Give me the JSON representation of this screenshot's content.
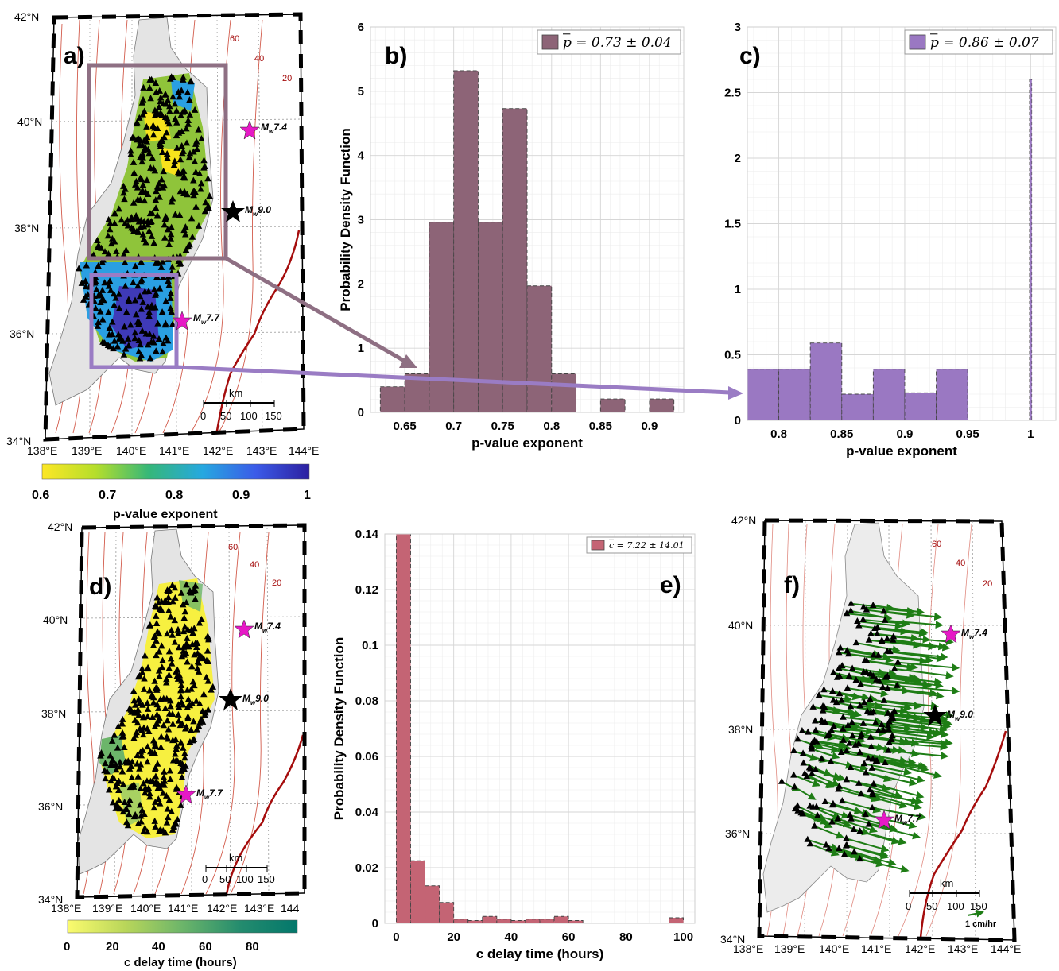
{
  "panels": {
    "a": {
      "label": "a)",
      "lat_labels": [
        "42°N",
        "40°N",
        "38°N",
        "36°N",
        "34°N"
      ],
      "lon_labels": [
        "138°E",
        "139°E",
        "140°E",
        "141°E",
        "142°E",
        "143°E",
        "144°E"
      ],
      "contour_labels": [
        "60",
        "40",
        "20"
      ],
      "quakes": [
        {
          "label": "M",
          "sub": "w",
          "mag": "7.4",
          "color": "#e619c6"
        },
        {
          "label": "M",
          "sub": "w",
          "mag": "9.0",
          "color": "#000000"
        },
        {
          "label": "M",
          "sub": "w",
          "mag": "7.7",
          "color": "#e619c6"
        }
      ],
      "scale": {
        "title": "km",
        "ticks": [
          "0",
          "50",
          "100",
          "150"
        ]
      },
      "colorbar": {
        "label": "p-value exponent",
        "tick_labels": [
          "0.6",
          "0.7",
          "0.8",
          "0.9",
          "1"
        ],
        "colors": [
          "#fde725",
          "#b5de2b",
          "#35b779",
          "#26a8e0",
          "#3b5be8",
          "#2c1fa0"
        ]
      },
      "box_colors": {
        "north": "#8e6f83",
        "south": "#9a7cc4"
      }
    },
    "d": {
      "label": "d)",
      "lat_labels": [
        "42°N",
        "40°N",
        "38°N",
        "36°N",
        "34°N"
      ],
      "lon_labels": [
        "138°E",
        "139°E",
        "140°E",
        "141°E",
        "142°E",
        "143°E",
        "144"
      ],
      "contour_labels": [
        "60",
        "40",
        "20"
      ],
      "quakes": [
        {
          "label": "M",
          "sub": "w",
          "mag": "7.4",
          "color": "#e619c6"
        },
        {
          "label": "M",
          "sub": "w",
          "mag": "9.0",
          "color": "#000000"
        },
        {
          "label": "M",
          "sub": "w",
          "mag": "7.7",
          "color": "#e619c6"
        }
      ],
      "scale": {
        "title": "km",
        "ticks": [
          "0",
          "50",
          "100",
          "150"
        ]
      },
      "colorbar": {
        "label": "c delay time (hours)",
        "tick_labels": [
          "0",
          "20",
          "40",
          "60",
          "80"
        ],
        "colors": [
          "#fbfb6e",
          "#b9d65a",
          "#6cb56a",
          "#248c6e",
          "#03776b"
        ]
      }
    },
    "f": {
      "label": "f)",
      "lat_labels": [
        "42°N",
        "40°N",
        "38°N",
        "36°N",
        "34°N"
      ],
      "lon_labels": [
        "138°E",
        "139°E",
        "140°E",
        "141°E",
        "142°E",
        "143°E",
        "144°E"
      ],
      "contour_labels": [
        "60",
        "40",
        "20"
      ],
      "quakes": [
        {
          "label": "M",
          "sub": "w",
          "mag": "7.4",
          "color": "#e619c6"
        },
        {
          "label": "M",
          "sub": "w",
          "mag": "9.0",
          "color": "#000000"
        },
        {
          "label": "M",
          "sub": "w",
          "mag": "7.7",
          "color": "#e619c6"
        }
      ],
      "scale": {
        "title": "km",
        "ticks": [
          "0",
          "50",
          "100",
          "150"
        ]
      },
      "vector_legend": "1 cm/hr",
      "arrow_color": "#1e7d15"
    }
  },
  "chart_data": [
    {
      "panel": "b)",
      "type": "bar",
      "bin_edges": [
        0.625,
        0.65,
        0.675,
        0.7,
        0.725,
        0.75,
        0.775,
        0.8,
        0.825,
        0.85,
        0.875,
        0.9,
        0.925
      ],
      "values": [
        0.4,
        0.6,
        2.96,
        5.32,
        2.96,
        4.73,
        1.97,
        0.6,
        0,
        0.21,
        0,
        0.21
      ],
      "xlim": [
        0.615,
        0.935
      ],
      "ylim": [
        0,
        6
      ],
      "xticks": [
        0.65,
        0.7,
        0.75,
        0.8,
        0.85,
        0.9
      ],
      "xtick_labels": [
        "0.65",
        "0.7",
        "0.75",
        "0.8",
        "0.85",
        "0.9"
      ],
      "yticks": [
        0,
        1,
        2,
        3,
        4,
        5,
        6
      ],
      "ytick_labels": [
        "0",
        "1",
        "2",
        "3",
        "4",
        "5",
        "6"
      ],
      "xlabel": "p-value exponent",
      "ylabel": "Probability Density Function",
      "legend": "p = 0.73 ± 0.04",
      "legend_position": "top-right",
      "color": "#8d6477",
      "grid": true
    },
    {
      "panel": "c)",
      "type": "bar",
      "bin_edges": [
        0.775,
        0.8,
        0.825,
        0.85,
        0.875,
        0.9,
        0.925,
        0.95
      ],
      "values": [
        0.39,
        0.39,
        0.59,
        0.2,
        0.39,
        0.21,
        0.39
      ],
      "spike": {
        "x": 1.0,
        "value": 2.6
      },
      "xlim": [
        0.775,
        1.02
      ],
      "ylim": [
        0,
        3
      ],
      "xticks": [
        0.8,
        0.85,
        0.9,
        0.95,
        1
      ],
      "xtick_labels": [
        "0.8",
        "0.85",
        "0.9",
        "0.95",
        "1"
      ],
      "yticks": [
        0,
        0.5,
        1,
        1.5,
        2,
        2.5,
        3
      ],
      "ytick_labels": [
        "0",
        "0.5",
        "1",
        "1.5",
        "2",
        "2.5",
        "3"
      ],
      "xlabel": "p-value exponent",
      "ylabel": "",
      "legend": "p = 0.86 ± 0.07",
      "legend_position": "top-right",
      "color": "#9a78c2",
      "grid": true
    },
    {
      "panel": "e)",
      "type": "bar",
      "bin_edges": [
        0,
        5,
        10,
        15,
        20,
        25,
        30,
        35,
        40,
        45,
        50,
        55,
        60,
        65,
        70,
        75,
        80,
        85,
        90,
        95,
        100
      ],
      "values": [
        0.14,
        0.0225,
        0.0135,
        0.0075,
        0.0015,
        0.001,
        0.0025,
        0.0015,
        0.001,
        0.0015,
        0.0015,
        0.0025,
        0.001,
        0,
        0,
        0,
        0,
        0,
        0,
        0.002
      ],
      "xlim": [
        -4,
        104
      ],
      "ylim": [
        0,
        0.14
      ],
      "xticks": [
        0,
        20,
        40,
        60,
        80,
        100
      ],
      "xtick_labels": [
        "0",
        "20",
        "40",
        "60",
        "80",
        "100"
      ],
      "yticks": [
        0,
        0.02,
        0.04,
        0.06,
        0.08,
        0.1,
        0.12,
        0.14
      ],
      "ytick_labels": [
        "0",
        "0.02",
        "0.04",
        "0.06",
        "0.08",
        "0.1",
        "0.12",
        "0.14"
      ],
      "xlabel": "c delay time (hours)",
      "ylabel": "Probability Density Function",
      "legend": "c = 7.22 ± 14.01",
      "legend_position": "top-right",
      "color": "#c46474",
      "grid": true
    }
  ]
}
